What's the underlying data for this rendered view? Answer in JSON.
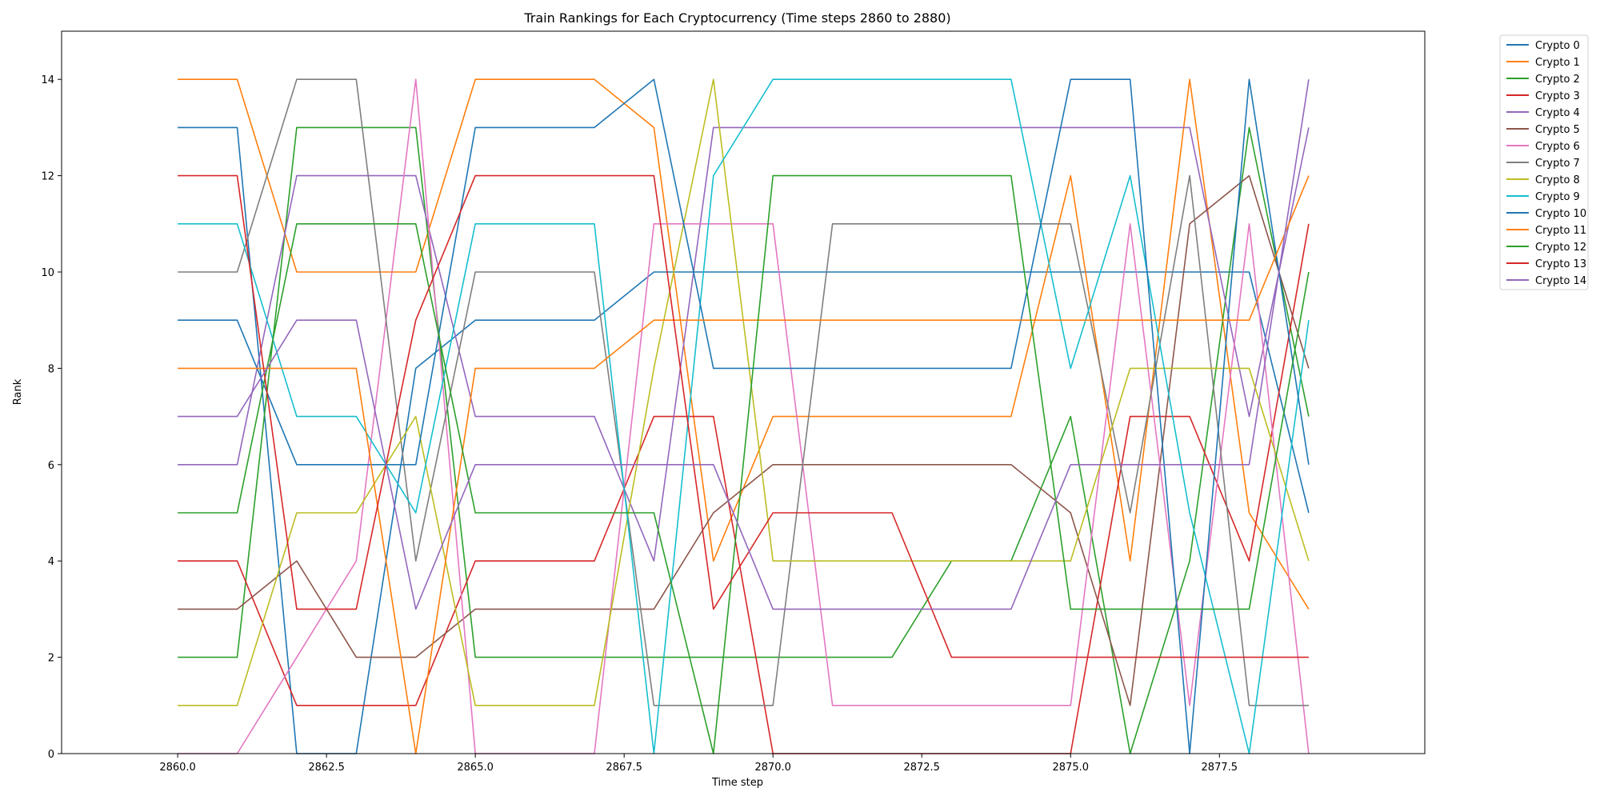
{
  "chart_data": {
    "type": "line",
    "title": "Train Rankings for Each Cryptocurrency (Time steps 2860 to 2880)",
    "xlabel": "Time step",
    "ylabel": "Rank",
    "xlim": [
      2858.05,
      2880.95
    ],
    "ylim": [
      0,
      15
    ],
    "xticks": [
      2860,
      2862.5,
      2865,
      2867.5,
      2870,
      2872.5,
      2875,
      2877.5
    ],
    "xtick_labels": [
      "2860.0",
      "2862.5",
      "2865.0",
      "2867.5",
      "2870.0",
      "2872.5",
      "2875.0",
      "2877.5"
    ],
    "yticks": [
      0,
      2,
      4,
      6,
      8,
      10,
      12,
      14
    ],
    "ytick_labels": [
      "0",
      "2",
      "4",
      "6",
      "8",
      "10",
      "12",
      "14"
    ],
    "grid": false,
    "legend_position": "outside-right-top",
    "x": [
      2860,
      2861,
      2862,
      2863,
      2864,
      2865,
      2866,
      2867,
      2868,
      2869,
      2870,
      2871,
      2872,
      2873,
      2874,
      2875,
      2876,
      2877,
      2878,
      2879
    ],
    "series": [
      {
        "name": "Crypto 0",
        "color": "#1f77b4",
        "values": [
          13,
          13,
          0,
          0,
          8,
          9,
          9,
          9,
          10,
          10,
          10,
          10,
          10,
          10,
          10,
          10,
          10,
          10,
          10,
          5
        ]
      },
      {
        "name": "Crypto 1",
        "color": "#ff7f0e",
        "values": [
          14,
          14,
          10,
          10,
          10,
          14,
          14,
          14,
          13,
          4,
          7,
          7,
          7,
          7,
          7,
          12,
          4,
          14,
          5,
          3
        ]
      },
      {
        "name": "Crypto 2",
        "color": "#2ca02c",
        "values": [
          2,
          2,
          13,
          13,
          13,
          2,
          2,
          2,
          2,
          2,
          2,
          2,
          2,
          4,
          4,
          7,
          0,
          4,
          13,
          7
        ]
      },
      {
        "name": "Crypto 3",
        "color": "#d62728",
        "values": [
          4,
          4,
          1,
          1,
          1,
          4,
          4,
          4,
          7,
          7,
          0,
          0,
          0,
          0,
          0,
          0,
          7,
          7,
          4,
          11
        ]
      },
      {
        "name": "Crypto 4",
        "color": "#9467bd",
        "values": [
          6,
          6,
          12,
          12,
          12,
          7,
          7,
          7,
          4,
          13,
          13,
          13,
          13,
          13,
          13,
          13,
          13,
          13,
          7,
          13
        ]
      },
      {
        "name": "Crypto 5",
        "color": "#8c564b",
        "values": [
          3,
          3,
          4,
          2,
          2,
          3,
          3,
          3,
          3,
          5,
          6,
          6,
          6,
          6,
          6,
          5,
          1,
          11,
          12,
          8
        ]
      },
      {
        "name": "Crypto 6",
        "color": "#e377c2",
        "values": [
          0,
          0,
          2,
          4,
          14,
          0,
          0,
          0,
          11,
          11,
          11,
          1,
          1,
          1,
          1,
          1,
          11,
          1,
          11,
          0
        ]
      },
      {
        "name": "Crypto 7",
        "color": "#7f7f7f",
        "values": [
          10,
          10,
          14,
          14,
          4,
          10,
          10,
          10,
          1,
          1,
          1,
          11,
          11,
          11,
          11,
          11,
          5,
          12,
          1,
          1
        ]
      },
      {
        "name": "Crypto 8",
        "color": "#bcbd22",
        "values": [
          1,
          1,
          5,
          5,
          7,
          1,
          1,
          1,
          8,
          14,
          4,
          4,
          4,
          4,
          4,
          4,
          8,
          8,
          8,
          4
        ]
      },
      {
        "name": "Crypto 9",
        "color": "#17becf",
        "values": [
          11,
          11,
          7,
          7,
          5,
          11,
          11,
          11,
          0,
          12,
          14,
          14,
          14,
          14,
          14,
          8,
          12,
          5,
          0,
          9
        ]
      },
      {
        "name": "Crypto 10",
        "color": "#1f77b4",
        "values": [
          9,
          9,
          6,
          6,
          6,
          13,
          13,
          13,
          14,
          8,
          8,
          8,
          8,
          8,
          8,
          14,
          14,
          0,
          14,
          6
        ]
      },
      {
        "name": "Crypto 11",
        "color": "#ff7f0e",
        "values": [
          8,
          8,
          8,
          8,
          0,
          8,
          8,
          8,
          9,
          9,
          9,
          9,
          9,
          9,
          9,
          9,
          9,
          9,
          9,
          12
        ]
      },
      {
        "name": "Crypto 12",
        "color": "#2ca02c",
        "values": [
          5,
          5,
          11,
          11,
          11,
          5,
          5,
          5,
          5,
          0,
          12,
          12,
          12,
          12,
          12,
          3,
          3,
          3,
          3,
          10
        ]
      },
      {
        "name": "Crypto 13",
        "color": "#d62728",
        "values": [
          12,
          12,
          3,
          3,
          9,
          12,
          12,
          12,
          12,
          3,
          5,
          5,
          5,
          2,
          2,
          2,
          2,
          2,
          2,
          2
        ]
      },
      {
        "name": "Crypto 14",
        "color": "#9467bd",
        "values": [
          7,
          7,
          9,
          9,
          3,
          6,
          6,
          6,
          6,
          6,
          3,
          3,
          3,
          3,
          3,
          6,
          6,
          6,
          6,
          14
        ]
      }
    ]
  }
}
